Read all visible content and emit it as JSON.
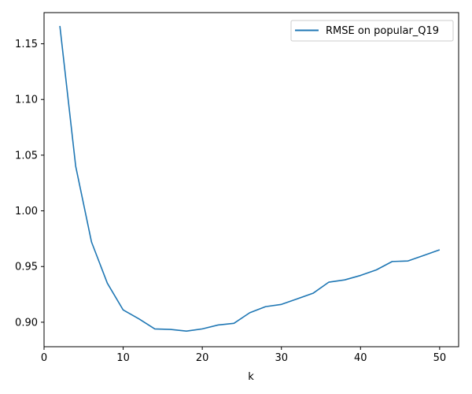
{
  "chart_data": {
    "type": "line",
    "xlabel": "k",
    "ylabel": "",
    "xlim": [
      0,
      52.4
    ],
    "ylim": [
      0.878,
      1.178
    ],
    "xticks": [
      0,
      10,
      20,
      30,
      40,
      50
    ],
    "yticks": [
      0.9,
      0.95,
      1.0,
      1.05,
      1.1,
      1.15
    ],
    "xtick_labels": [
      "0",
      "10",
      "20",
      "30",
      "40",
      "50"
    ],
    "ytick_labels": [
      "0.90",
      "0.95",
      "1.00",
      "1.05",
      "1.10",
      "1.15"
    ],
    "grid": false,
    "legend_position": "top-right",
    "series": [
      {
        "name": "RMSE on popular_Q19",
        "color": "#1f77b4",
        "x": [
          2,
          4,
          6,
          8,
          10,
          12,
          14,
          16,
          18,
          20,
          22,
          24,
          26,
          28,
          30,
          32,
          34,
          36,
          38,
          40,
          42,
          44,
          46,
          48,
          50
        ],
        "y": [
          1.166,
          1.04,
          0.972,
          0.935,
          0.911,
          0.903,
          0.894,
          0.8935,
          0.892,
          0.894,
          0.8975,
          0.899,
          0.9085,
          0.914,
          0.916,
          0.921,
          0.926,
          0.936,
          0.938,
          0.942,
          0.947,
          0.9545,
          0.955,
          0.96,
          0.965
        ]
      }
    ]
  }
}
